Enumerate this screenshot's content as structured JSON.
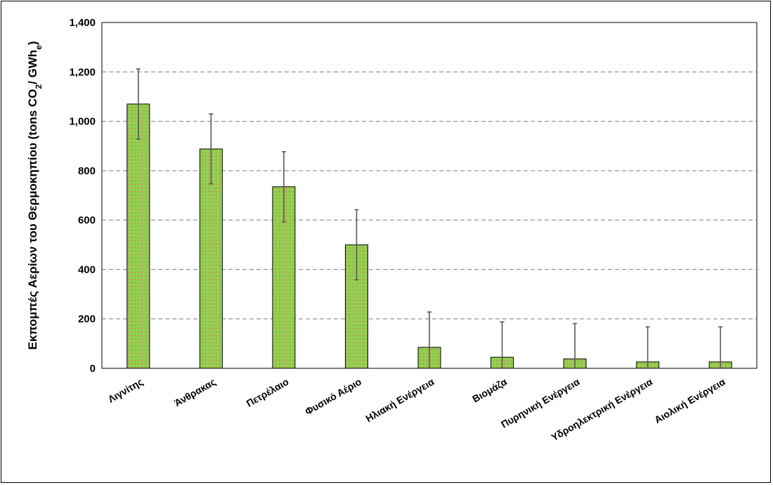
{
  "chart_data": {
    "type": "bar",
    "ylabel": {
      "main": "Εκπομπές Αερίων του Θερμοκηπίου  (tons CO",
      "sub1": "2",
      "mid": "/ GWh",
      "sub2": "e",
      "end": ")"
    },
    "ylim": [
      0,
      1400
    ],
    "yticks": [
      0,
      200,
      400,
      600,
      800,
      1000,
      1200,
      1400
    ],
    "ytick_labels": [
      "0",
      "200",
      "400",
      "600",
      "800",
      "1,000",
      "1,200",
      "1,400"
    ],
    "grid": true,
    "legend": "none",
    "categories": [
      "Λιγνίτης",
      "Άνθρακας",
      "Πετρέλαιο",
      "Φυσικό Αέριο",
      "Ηλιακή Ενέργεια",
      "Βιομάζα",
      "Πυρηνική Ενέργεια",
      "Υδροηλεκτρική Ενέργεια",
      "Αιολική Ενέργεια"
    ],
    "values": [
      1070,
      888,
      735,
      500,
      85,
      45,
      38,
      26,
      26
    ],
    "error_low": [
      928,
      747,
      593,
      358,
      0,
      0,
      0,
      0,
      0
    ],
    "error_high": [
      1212,
      1030,
      877,
      642,
      228,
      188,
      181,
      168,
      168
    ],
    "colors": {
      "bar_fill": "#92d050",
      "dots": "#e06060",
      "bar_edge": "#000000",
      "error": "#595959"
    }
  }
}
